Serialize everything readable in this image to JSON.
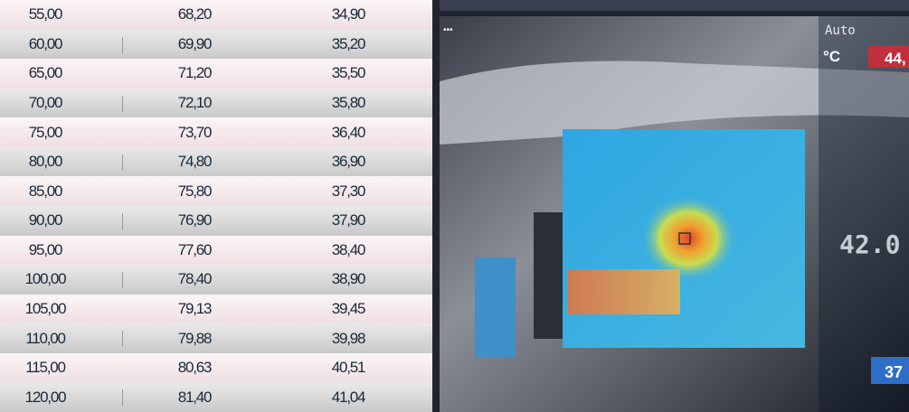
{
  "table": {
    "rows": [
      [
        "55,00",
        "68,20",
        "34,90"
      ],
      [
        "60,00",
        "69,90",
        "35,20"
      ],
      [
        "65,00",
        "71,20",
        "35,50"
      ],
      [
        "70,00",
        "72,10",
        "35,80"
      ],
      [
        "75,00",
        "73,70",
        "36,40"
      ],
      [
        "80,00",
        "74,80",
        "36,90"
      ],
      [
        "85,00",
        "75,80",
        "37,30"
      ],
      [
        "90,00",
        "76,90",
        "37,90"
      ],
      [
        "95,00",
        "77,60",
        "38,40"
      ],
      [
        "100,00",
        "78,40",
        "38,90"
      ],
      [
        "105,00",
        "79,13",
        "39,45"
      ],
      [
        "110,00",
        "79,88",
        "39,98"
      ],
      [
        "115,00",
        "80,63",
        "40,51"
      ],
      [
        "120,00",
        "81,40",
        "41,04"
      ]
    ]
  },
  "overlay": {
    "mode": "Auto",
    "unit": "°C",
    "max": "44,",
    "center": "42.0",
    "min": "37"
  }
}
